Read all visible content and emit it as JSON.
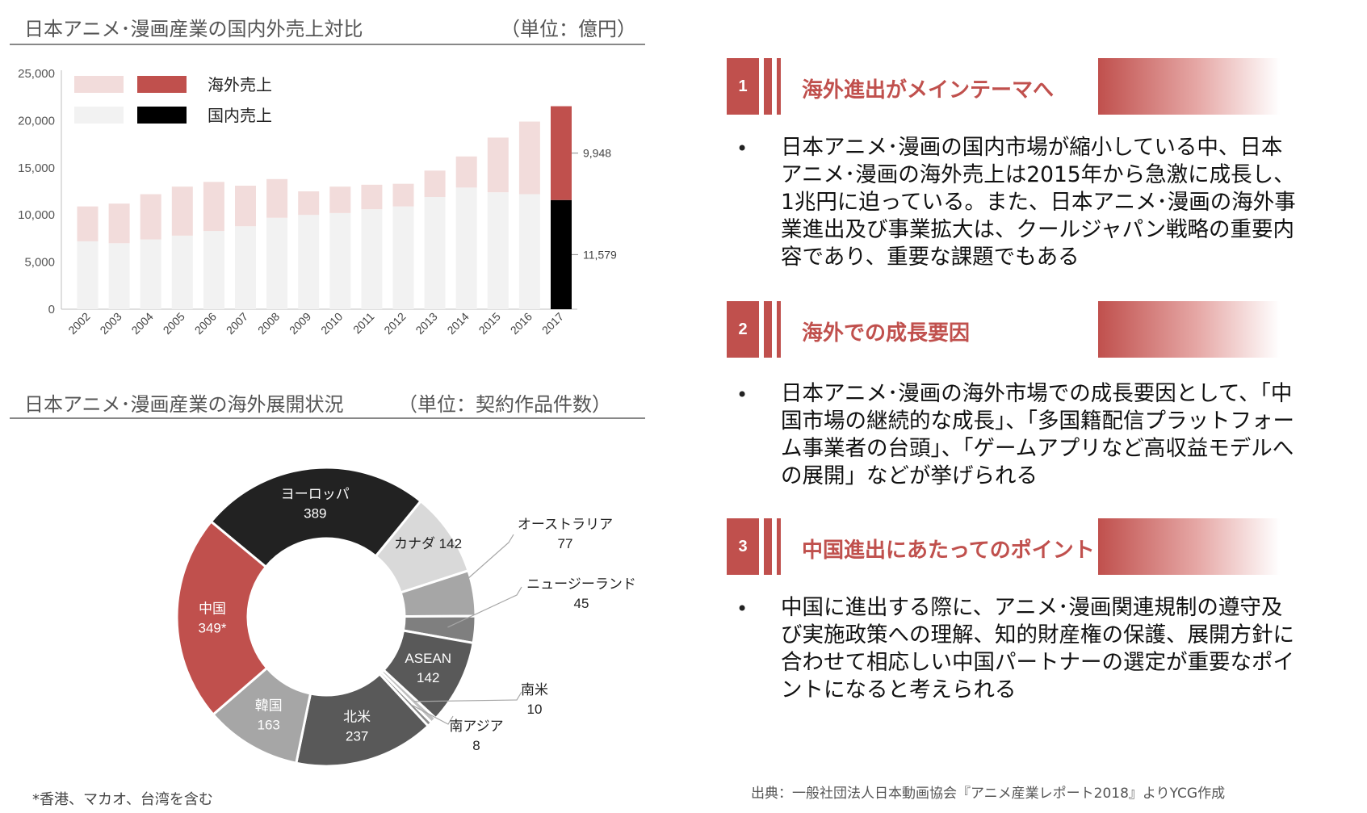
{
  "bar_section": {
    "title": "日本アニメ･漫画産業の国内外売上対比",
    "unit": "（単位：億円）"
  },
  "donut_section": {
    "title": "日本アニメ･漫画産業の海外展開状況",
    "unit": "（単位：契約作品件数）",
    "footnote": "*香港、マカオ、台湾を含む"
  },
  "colors": {
    "accent": "#c0504d",
    "overseas_light": "#f2dcdb",
    "domestic_light": "#f2f2f2",
    "domestic_dark": "#000000"
  },
  "chart_data": [
    {
      "type": "bar",
      "stacked": true,
      "categories": [
        "2002",
        "2003",
        "2004",
        "2005",
        "2006",
        "2007",
        "2008",
        "2009",
        "2010",
        "2011",
        "2012",
        "2013",
        "2014",
        "2015",
        "2016",
        "2017"
      ],
      "series": [
        {
          "name": "国内売上",
          "values": [
            7200,
            7000,
            7400,
            7800,
            8300,
            8800,
            9700,
            10000,
            10200,
            10600,
            10900,
            11900,
            12900,
            12400,
            12200,
            11579
          ]
        },
        {
          "name": "海外売上",
          "values": [
            3700,
            4200,
            4800,
            5200,
            5200,
            4300,
            4100,
            2500,
            2800,
            2600,
            2400,
            2800,
            3300,
            5800,
            7700,
            9948
          ]
        }
      ],
      "legend": [
        {
          "label": "海外売上"
        },
        {
          "label": "国内売上"
        }
      ],
      "data_labels": [
        {
          "category": "2017",
          "series": "海外売上",
          "text": "9,948"
        },
        {
          "category": "2017",
          "series": "国内売上",
          "text": "11,579"
        }
      ],
      "yticks": [
        "0",
        "5,000",
        "10,000",
        "15,000",
        "20,000",
        "25,000"
      ],
      "ylim": [
        0,
        25000
      ],
      "legend_position": "top-left",
      "grid": false
    },
    {
      "type": "pie",
      "donut": true,
      "slices": [
        {
          "label": "ヨーロッパ",
          "value": 389,
          "value_text": "389",
          "color": "#222222",
          "text_color": "#ffffff",
          "inside": true
        },
        {
          "label": "カナダ",
          "value": 142,
          "value_text": "142",
          "color": "#d9d9d9",
          "text_color": "#222222",
          "inside": true,
          "inline": true
        },
        {
          "label": "オーストラリア",
          "value": 77,
          "value_text": "77",
          "color": "#a6a6a6",
          "text_color": "#222222",
          "inside": false
        },
        {
          "label": "ニュージーランド",
          "value": 45,
          "value_text": "45",
          "color": "#7f7f7f",
          "text_color": "#222222",
          "inside": false
        },
        {
          "label": "ASEAN",
          "value": 142,
          "value_text": "142",
          "color": "#595959",
          "text_color": "#ffffff",
          "inside": true
        },
        {
          "label": "南米",
          "value": 10,
          "value_text": "10",
          "color": "#bfbfbf",
          "text_color": "#222222",
          "inside": false
        },
        {
          "label": "南アジア",
          "value": 8,
          "value_text": "8",
          "color": "#8c8c8c",
          "text_color": "#222222",
          "inside": false
        },
        {
          "label": "北米",
          "value": 237,
          "value_text": "237",
          "color": "#595959",
          "text_color": "#ffffff",
          "inside": true
        },
        {
          "label": "韓国",
          "value": 163,
          "value_text": "163",
          "color": "#a6a6a6",
          "text_color": "#ffffff",
          "inside": true
        },
        {
          "label": "中国",
          "value": 349,
          "value_text": "349*",
          "color": "#c0504d",
          "text_color": "#ffffff",
          "inside": true
        }
      ]
    }
  ],
  "points": [
    {
      "number": "1",
      "heading": "海外進出がメインテーマへ",
      "body": "日本アニメ･漫画の国内市場が縮小している中、日本アニメ･漫画の海外売上は2015年から急激に成長し、1兆円に迫っている。また、日本アニメ･漫画の海外事業進出及び事業拡大は、クールジャパン戦略の重要内容であり、重要な課題でもある"
    },
    {
      "number": "2",
      "heading": "海外での成長要因",
      "body": "日本アニメ･漫画の海外市場での成長要因として、「中国市場の継続的な成長」、「多国籍配信プラットフォーム事業者の台頭」、「ゲームアプリなど高収益モデルへの展開」などが挙げられる"
    },
    {
      "number": "3",
      "heading": "中国進出にあたってのポイント",
      "body": "中国に進出する際に、アニメ･漫画関連規制の遵守及び実施政策への理解、知的財産権の保護、展開方針に合わせて相応しい中国パートナーの選定が重要なポイントになると考えられる"
    }
  ],
  "bullet_symbol": "•",
  "source": "出典：一般社団法人日本動画協会『アニメ産業レポート2018』よりYCG作成"
}
